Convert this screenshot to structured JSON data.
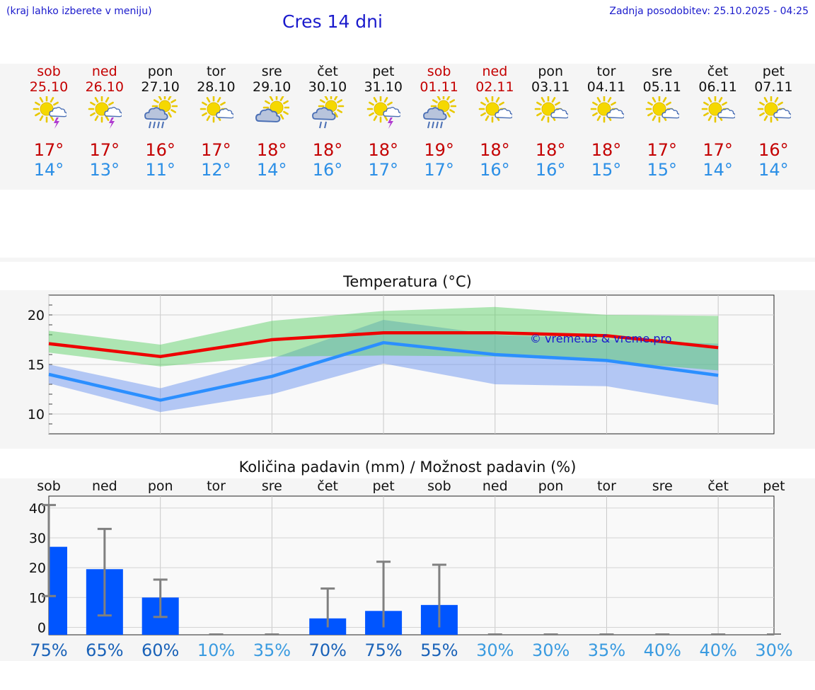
{
  "header": {
    "hint": "(kraj lahko izberete v meniju)",
    "title": "Cres 14 dni",
    "updated": "Zadnja posodobitev: 25.10.2025 - 04:25"
  },
  "colors": {
    "weekend": "#c40000",
    "weekday": "#111111",
    "tmax": "#c40000",
    "tmin": "#2b8fe6",
    "bar": "#0055ff"
  },
  "days": [
    {
      "name": "sob",
      "date": "25.10",
      "weekend": true,
      "icon": "sun-thunder-icon",
      "tmax": "17°",
      "tmin": "14°"
    },
    {
      "name": "ned",
      "date": "26.10",
      "weekend": true,
      "icon": "sun-thunder-icon",
      "tmax": "17°",
      "tmin": "13°"
    },
    {
      "name": "pon",
      "date": "27.10",
      "weekend": false,
      "icon": "sun-rain-icon",
      "tmax": "16°",
      "tmin": "11°"
    },
    {
      "name": "tor",
      "date": "28.10",
      "weekend": false,
      "icon": "sun-cloud-icon",
      "tmax": "17°",
      "tmin": "12°"
    },
    {
      "name": "sre",
      "date": "29.10",
      "weekend": false,
      "icon": "cloud-sun-icon",
      "tmax": "18°",
      "tmin": "14°"
    },
    {
      "name": "čet",
      "date": "30.10",
      "weekend": false,
      "icon": "cloud-rain-icon",
      "tmax": "18°",
      "tmin": "16°"
    },
    {
      "name": "pet",
      "date": "31.10",
      "weekend": false,
      "icon": "sun-thunder-icon",
      "tmax": "18°",
      "tmin": "17°"
    },
    {
      "name": "sob",
      "date": "01.11",
      "weekend": true,
      "icon": "sun-rain-icon",
      "tmax": "19°",
      "tmin": "17°"
    },
    {
      "name": "ned",
      "date": "02.11",
      "weekend": true,
      "icon": "sun-cloud-icon",
      "tmax": "18°",
      "tmin": "16°"
    },
    {
      "name": "pon",
      "date": "03.11",
      "weekend": false,
      "icon": "sun-cloud-icon",
      "tmax": "18°",
      "tmin": "16°"
    },
    {
      "name": "tor",
      "date": "04.11",
      "weekend": false,
      "icon": "sun-cloud-icon",
      "tmax": "18°",
      "tmin": "15°"
    },
    {
      "name": "sre",
      "date": "05.11",
      "weekend": false,
      "icon": "sun-cloud-icon",
      "tmax": "17°",
      "tmin": "15°"
    },
    {
      "name": "čet",
      "date": "06.11",
      "weekend": false,
      "icon": "sun-cloud-icon",
      "tmax": "17°",
      "tmin": "14°"
    },
    {
      "name": "pet",
      "date": "07.11",
      "weekend": false,
      "icon": "sun-cloud-icon",
      "tmax": "16°",
      "tmin": "14°"
    }
  ],
  "chart_data": [
    {
      "type": "line",
      "title": "Temperatura (°C)",
      "watermark": "© vreme.us & vreme.pro",
      "ylim": [
        8,
        22
      ],
      "yticks": [
        10,
        15,
        20
      ],
      "x": [
        0,
        2,
        4,
        6,
        8,
        10,
        12
      ],
      "series": [
        {
          "name": "max",
          "values": [
            17.1,
            15.8,
            17.5,
            18.2,
            18.2,
            17.9,
            16.7
          ]
        },
        {
          "name": "min",
          "values": [
            14.0,
            11.4,
            13.8,
            17.2,
            16.0,
            15.4,
            13.9
          ]
        },
        {
          "name": "max-range-high",
          "values": [
            18.4,
            17.0,
            19.4,
            20.4,
            20.8,
            20.0,
            19.9
          ]
        },
        {
          "name": "max-range-low",
          "values": [
            16.2,
            14.8,
            15.8,
            15.9,
            15.8,
            15.3,
            14.4
          ]
        },
        {
          "name": "min-range-high",
          "values": [
            15.0,
            12.6,
            15.6,
            19.5,
            18.0,
            17.5,
            17.1
          ]
        },
        {
          "name": "min-range-low",
          "values": [
            13.1,
            10.2,
            12.0,
            15.1,
            13.0,
            12.8,
            10.9
          ]
        }
      ]
    },
    {
      "type": "bar",
      "title": "Količina padavin (mm) / Možnost padavin (%)",
      "categories": [
        "sob",
        "ned",
        "pon",
        "tor",
        "sre",
        "čet",
        "pet",
        "sob",
        "ned",
        "pon",
        "tor",
        "sre",
        "čet",
        "pet"
      ],
      "values": [
        27.0,
        19.5,
        10.0,
        0,
        0,
        3.0,
        5.5,
        7.5,
        0,
        0,
        0,
        0,
        0,
        0
      ],
      "error_high": [
        41.0,
        33.0,
        16.0,
        0,
        0,
        13.0,
        22.0,
        21.0,
        0,
        0,
        0,
        0,
        0,
        0
      ],
      "error_low": [
        10.5,
        4.0,
        3.5,
        0,
        0,
        0,
        0,
        0,
        0,
        0,
        0,
        0,
        0,
        0
      ],
      "yticks": [
        0,
        10,
        20,
        30,
        40
      ],
      "ylim": [
        -2.5,
        44
      ],
      "chance": [
        "75%",
        "65%",
        "60%",
        "10%",
        "35%",
        "70%",
        "75%",
        "55%",
        "30%",
        "30%",
        "35%",
        "40%",
        "40%",
        "30%"
      ],
      "chance_strong": [
        true,
        true,
        true,
        false,
        false,
        true,
        true,
        true,
        false,
        false,
        false,
        false,
        false,
        false
      ]
    }
  ]
}
